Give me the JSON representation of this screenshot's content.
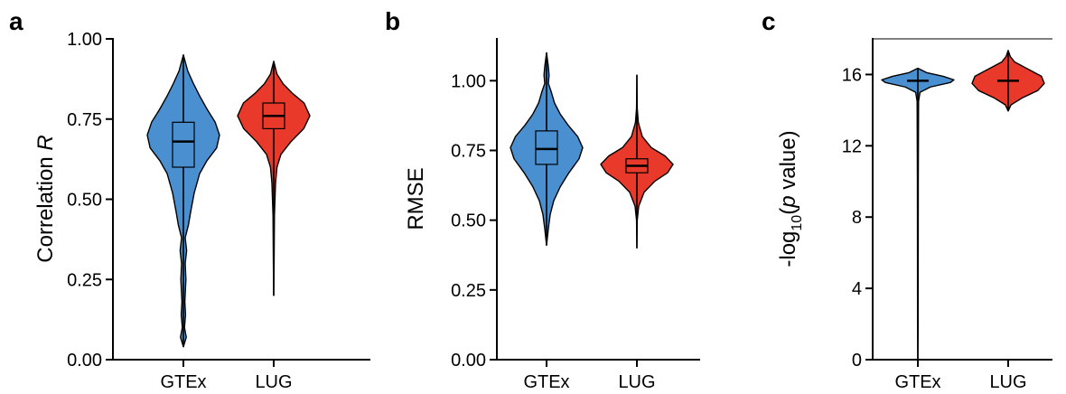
{
  "chart_data": [
    {
      "panel_letter": "a",
      "type": "violin",
      "ylabel_main": "Correlation ",
      "ylabel_italic": "R",
      "ylim": [
        0.0,
        1.0
      ],
      "yticks": [
        "0.00",
        "0.25",
        "0.50",
        "0.75",
        "1.00"
      ],
      "ytick_values": [
        0,
        0.25,
        0.5,
        0.75,
        1.0
      ],
      "categories": [
        "GTEx",
        "LUG"
      ],
      "series": [
        {
          "category": "GTEx",
          "color": "#4a8fd0",
          "min": 0.04,
          "max": 0.95,
          "median": 0.68,
          "q1": 0.6,
          "q3": 0.74,
          "profile": [
            [
              0.04,
              0.0
            ],
            [
              0.07,
              0.08
            ],
            [
              0.1,
              0.03
            ],
            [
              0.14,
              0.06
            ],
            [
              0.18,
              0.04
            ],
            [
              0.25,
              0.07
            ],
            [
              0.3,
              0.05
            ],
            [
              0.34,
              0.09
            ],
            [
              0.38,
              0.05
            ],
            [
              0.42,
              0.14
            ],
            [
              0.46,
              0.2
            ],
            [
              0.52,
              0.3
            ],
            [
              0.58,
              0.45
            ],
            [
              0.62,
              0.65
            ],
            [
              0.66,
              0.92
            ],
            [
              0.7,
              1.0
            ],
            [
              0.74,
              0.88
            ],
            [
              0.78,
              0.66
            ],
            [
              0.82,
              0.46
            ],
            [
              0.86,
              0.28
            ],
            [
              0.9,
              0.12
            ],
            [
              0.95,
              0.0
            ]
          ]
        },
        {
          "category": "LUG",
          "color": "#e8392a",
          "min": 0.2,
          "max": 0.93,
          "median": 0.76,
          "q1": 0.72,
          "q3": 0.8,
          "profile": [
            [
              0.2,
              0.0
            ],
            [
              0.3,
              0.01
            ],
            [
              0.45,
              0.02
            ],
            [
              0.5,
              0.035
            ],
            [
              0.55,
              0.05
            ],
            [
              0.6,
              0.09
            ],
            [
              0.64,
              0.2
            ],
            [
              0.68,
              0.48
            ],
            [
              0.72,
              0.83
            ],
            [
              0.76,
              1.0
            ],
            [
              0.8,
              0.84
            ],
            [
              0.83,
              0.52
            ],
            [
              0.86,
              0.26
            ],
            [
              0.89,
              0.09
            ],
            [
              0.93,
              0.0
            ]
          ]
        }
      ]
    },
    {
      "panel_letter": "b",
      "type": "violin",
      "ylabel_main": "RMSE",
      "ylabel_italic": "",
      "ylim": [
        0.0,
        1.15
      ],
      "yticks": [
        "0.00",
        "0.25",
        "0.50",
        "0.75",
        "1.00"
      ],
      "ytick_values": [
        0,
        0.25,
        0.5,
        0.75,
        1.0
      ],
      "categories": [
        "GTEx",
        "LUG"
      ],
      "series": [
        {
          "category": "GTEx",
          "color": "#4a8fd0",
          "min": 0.41,
          "max": 1.1,
          "median": 0.755,
          "q1": 0.7,
          "q3": 0.82,
          "profile": [
            [
              0.41,
              0.0
            ],
            [
              0.47,
              0.05
            ],
            [
              0.52,
              0.1
            ],
            [
              0.57,
              0.2
            ],
            [
              0.62,
              0.38
            ],
            [
              0.67,
              0.62
            ],
            [
              0.72,
              0.9
            ],
            [
              0.76,
              1.0
            ],
            [
              0.8,
              0.86
            ],
            [
              0.84,
              0.6
            ],
            [
              0.88,
              0.38
            ],
            [
              0.92,
              0.22
            ],
            [
              0.96,
              0.13
            ],
            [
              0.99,
              0.05
            ],
            [
              1.02,
              0.07
            ],
            [
              1.05,
              0.05
            ],
            [
              1.08,
              0.02
            ],
            [
              1.1,
              0.0
            ]
          ]
        },
        {
          "category": "LUG",
          "color": "#e8392a",
          "min": 0.4,
          "max": 1.02,
          "median": 0.695,
          "q1": 0.67,
          "q3": 0.72,
          "profile": [
            [
              0.4,
              0.0
            ],
            [
              0.5,
              0.01
            ],
            [
              0.55,
              0.05
            ],
            [
              0.6,
              0.2
            ],
            [
              0.64,
              0.5
            ],
            [
              0.67,
              0.85
            ],
            [
              0.7,
              1.0
            ],
            [
              0.73,
              0.78
            ],
            [
              0.76,
              0.4
            ],
            [
              0.8,
              0.15
            ],
            [
              0.85,
              0.04
            ],
            [
              0.9,
              0.01
            ],
            [
              1.02,
              0.0
            ]
          ]
        }
      ]
    },
    {
      "panel_letter": "c",
      "type": "violin",
      "ylabel_main": "-log",
      "ylabel_sub": "10",
      "ylabel_pre_italic": "(",
      "ylabel_italic": "p",
      "ylabel_post": " value)",
      "ylim": [
        0,
        18
      ],
      "yticks": [
        "0",
        "4",
        "8",
        "12",
        "16"
      ],
      "ytick_values": [
        0,
        4,
        8,
        12,
        16
      ],
      "categories": [
        "GTEx",
        "LUG"
      ],
      "series": [
        {
          "category": "GTEx",
          "color": "#4a8fd0",
          "min": 0.0,
          "max": 16.35,
          "median": 15.65,
          "q1": 15.65,
          "q3": 15.65,
          "profile": [
            [
              0.0,
              0.0
            ],
            [
              2.0,
              0.008
            ],
            [
              10.0,
              0.012
            ],
            [
              14.5,
              0.02
            ],
            [
              15.0,
              0.06
            ],
            [
              15.3,
              0.35
            ],
            [
              15.55,
              0.9
            ],
            [
              15.7,
              1.0
            ],
            [
              15.9,
              0.7
            ],
            [
              16.1,
              0.25
            ],
            [
              16.35,
              0.0
            ]
          ]
        },
        {
          "category": "LUG",
          "color": "#e8392a",
          "min": 13.95,
          "max": 17.35,
          "median": 15.65,
          "q1": 15.65,
          "q3": 15.65,
          "profile": [
            [
              13.95,
              0.0
            ],
            [
              14.3,
              0.08
            ],
            [
              14.7,
              0.4
            ],
            [
              15.1,
              0.82
            ],
            [
              15.5,
              1.0
            ],
            [
              15.9,
              0.92
            ],
            [
              16.3,
              0.55
            ],
            [
              16.7,
              0.18
            ],
            [
              17.0,
              0.06
            ],
            [
              17.35,
              0.0
            ]
          ]
        }
      ]
    }
  ]
}
